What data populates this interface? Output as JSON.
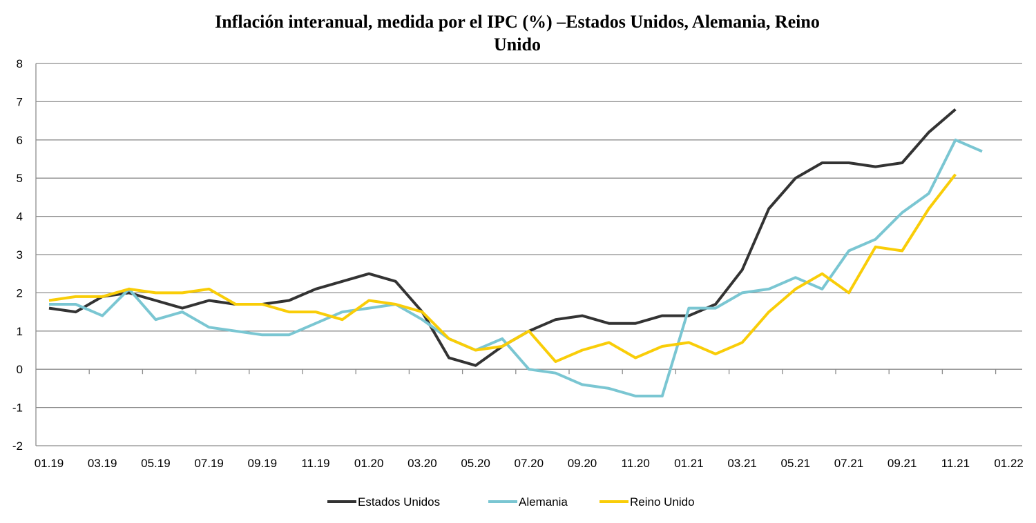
{
  "chart_data": {
    "type": "line",
    "title_lines": [
      "Inflación interanual, medida por el IPC (%) –Estados Unidos, Alemania, Reino",
      "Unido"
    ],
    "xlabel": "",
    "ylabel": "",
    "ylim": [
      -2,
      8
    ],
    "yticks": [
      8,
      7,
      6,
      5,
      4,
      3,
      2,
      1,
      0,
      -1,
      -2
    ],
    "xtick_labels": [
      "01.19",
      "03.19",
      "05.19",
      "07.19",
      "09.19",
      "11.19",
      "01.20",
      "03.20",
      "05.20",
      "07.20",
      "09.20",
      "11.20",
      "01.21",
      "03.21",
      "05.21",
      "07.21",
      "09.21",
      "11.21",
      "01.22"
    ],
    "x": [
      "01.19",
      "02.19",
      "03.19",
      "04.19",
      "05.19",
      "06.19",
      "07.19",
      "08.19",
      "09.19",
      "10.19",
      "11.19",
      "12.19",
      "01.20",
      "02.20",
      "03.20",
      "04.20",
      "05.20",
      "06.20",
      "07.20",
      "08.20",
      "09.20",
      "10.20",
      "11.20",
      "12.20",
      "01.21",
      "02.21",
      "03.21",
      "04.21",
      "05.21",
      "06.21",
      "07.21",
      "08.21",
      "09.21",
      "10.21",
      "11.21",
      "12.21",
      "01.22"
    ],
    "grid": true,
    "legend_position": "bottom",
    "series": [
      {
        "name": "Estados Unidos",
        "color": "#333333",
        "values": [
          1.6,
          1.5,
          1.9,
          2.0,
          1.8,
          1.6,
          1.8,
          1.7,
          1.7,
          1.8,
          2.1,
          2.3,
          2.5,
          2.3,
          1.5,
          0.3,
          0.1,
          0.6,
          1.0,
          1.3,
          1.4,
          1.2,
          1.2,
          1.4,
          1.4,
          1.7,
          2.6,
          4.2,
          5.0,
          5.4,
          5.4,
          5.3,
          5.4,
          6.2,
          6.8,
          null,
          null
        ]
      },
      {
        "name": "Alemania",
        "color": "#7ac6d2",
        "values": [
          1.7,
          1.7,
          1.4,
          2.1,
          1.3,
          1.5,
          1.1,
          1.0,
          0.9,
          0.9,
          1.2,
          1.5,
          1.6,
          1.7,
          1.3,
          0.8,
          0.5,
          0.8,
          0.0,
          -0.1,
          -0.4,
          -0.5,
          -0.7,
          -0.7,
          1.6,
          1.6,
          2.0,
          2.1,
          2.4,
          2.1,
          3.1,
          3.4,
          4.1,
          4.6,
          6.0,
          5.7,
          null
        ]
      },
      {
        "name": "Reino Unido",
        "color": "#f9cd08",
        "values": [
          1.8,
          1.9,
          1.9,
          2.1,
          2.0,
          2.0,
          2.1,
          1.7,
          1.7,
          1.5,
          1.5,
          1.3,
          1.8,
          1.7,
          1.5,
          0.8,
          0.5,
          0.6,
          1.0,
          0.2,
          0.5,
          0.7,
          0.3,
          0.6,
          0.7,
          0.4,
          0.7,
          1.5,
          2.1,
          2.5,
          2.0,
          3.2,
          3.1,
          4.2,
          5.1,
          null,
          null
        ]
      }
    ]
  }
}
